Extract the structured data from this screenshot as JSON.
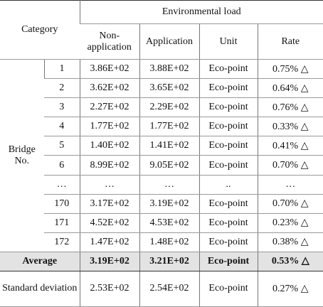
{
  "header": {
    "category": "Category",
    "group": "Environmental load",
    "columns": [
      "Non-application",
      "Application",
      "Unit",
      "Rate"
    ]
  },
  "group_label": "Bridge No.",
  "rows": [
    [
      "1",
      "3.86E+02",
      "3.88E+02",
      "Eco-point",
      "0.75% △"
    ],
    [
      "2",
      "3.62E+02",
      "3.65E+02",
      "Eco-point",
      "0.64% △"
    ],
    [
      "3",
      "2.27E+02",
      "2.29E+02",
      "Eco-point",
      "0.76% △"
    ],
    [
      "4",
      "1.77E+02",
      "1.77E+02",
      "Eco-point",
      "0.33% △"
    ],
    [
      "5",
      "1.40E+02",
      "1.41E+02",
      "Eco-point",
      "0.41% △"
    ],
    [
      "6",
      "8.99E+02",
      "9.05E+02",
      "Eco-point",
      "0.70% △"
    ],
    [
      "…",
      "…",
      "…",
      "..",
      "…"
    ],
    [
      "170",
      "3.17E+02",
      "3.19E+02",
      "Eco-point",
      "0.70% △"
    ],
    [
      "171",
      "4.52E+02",
      "4.53E+02",
      "Eco-point",
      "0.23% △"
    ],
    [
      "172",
      "1.47E+02",
      "1.48E+02",
      "Eco-point",
      "0.38% △"
    ]
  ],
  "average": {
    "label": "Average",
    "values": [
      "3.19E+02",
      "3.21E+02",
      "Eco-point",
      "0.53% △"
    ]
  },
  "std": {
    "label": "Standard deviation",
    "values": [
      "2.53E+02",
      "2.54E+02",
      "Eco-point",
      "0.27% △"
    ]
  }
}
